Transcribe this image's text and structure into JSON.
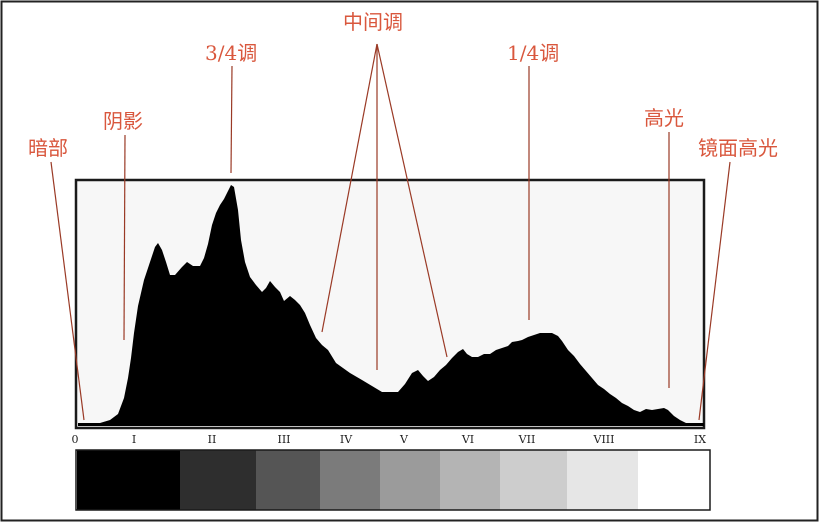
{
  "annotations": {
    "darks": "暗部",
    "shadows": "阴影",
    "three_quarter": "3/4调",
    "midtones": "中间调",
    "quarter": "1/4调",
    "highlights": "高光",
    "specular": "镜面高光"
  },
  "zones": [
    "0",
    "I",
    "II",
    "III",
    "IV",
    "V",
    "VI",
    "VII",
    "VIII",
    "IX"
  ],
  "gray_scale": [
    "#000000",
    "#2e2e2e",
    "#555555",
    "#7b7b7b",
    "#9b9b9b",
    "#b4b4b4",
    "#cdcdcd",
    "#e6e6e6",
    "#ffffff"
  ],
  "colors": {
    "annotation": "#d9573d",
    "histogram": "#000000",
    "frame": "#1a1a1a"
  }
}
